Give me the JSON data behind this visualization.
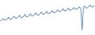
{
  "values": [
    91.5,
    92.0,
    93.0,
    91.8,
    92.2,
    93.0,
    94.2,
    92.5,
    93.0,
    93.8,
    95.0,
    93.2,
    93.5,
    94.5,
    95.8,
    93.8,
    94.2,
    95.0,
    96.5,
    94.5,
    94.8,
    95.8,
    97.0,
    95.2,
    95.5,
    96.5,
    97.8,
    95.8,
    96.0,
    97.0,
    98.5,
    96.5,
    96.8,
    97.8,
    99.0,
    97.0,
    97.5,
    98.2,
    99.5,
    97.8,
    98.0,
    98.8,
    100.2,
    98.5,
    99.0,
    99.8,
    101.0,
    99.2,
    99.5,
    100.2,
    101.5,
    99.8,
    100.0,
    100.8,
    102.0,
    100.5,
    100.8,
    101.5,
    102.5,
    101.0,
    84.0,
    101.8,
    103.2,
    101.5,
    101.8,
    102.8,
    104.0,
    102.5,
    102.5,
    103.5
  ],
  "line_color": "#4f81bd",
  "background_color": "#ffffff",
  "linewidth": 0.6,
  "ylim_min": 80,
  "ylim_max": 108
}
